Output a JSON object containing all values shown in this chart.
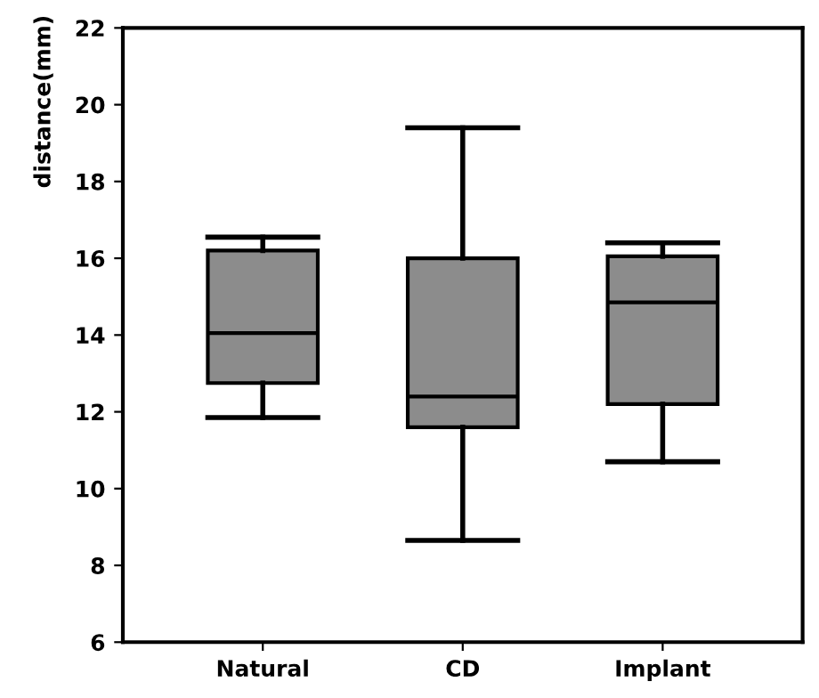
{
  "chart_data": {
    "type": "box",
    "ylabel": "distance(mm)",
    "categories": [
      "Natural",
      "CD",
      "Implant"
    ],
    "boxes": [
      {
        "low": 11.85,
        "q1": 12.75,
        "median": 14.05,
        "q3": 16.2,
        "high": 16.55
      },
      {
        "low": 8.65,
        "q1": 11.6,
        "median": 12.4,
        "q3": 16.0,
        "high": 19.4
      },
      {
        "low": 10.7,
        "q1": 12.2,
        "median": 14.85,
        "q3": 16.05,
        "high": 16.4
      }
    ],
    "color": "#8c8c8c",
    "ylim": [
      6,
      22
    ],
    "yticks": [
      6,
      8,
      10,
      12,
      14,
      16,
      18,
      20,
      22
    ],
    "grid": false
  }
}
